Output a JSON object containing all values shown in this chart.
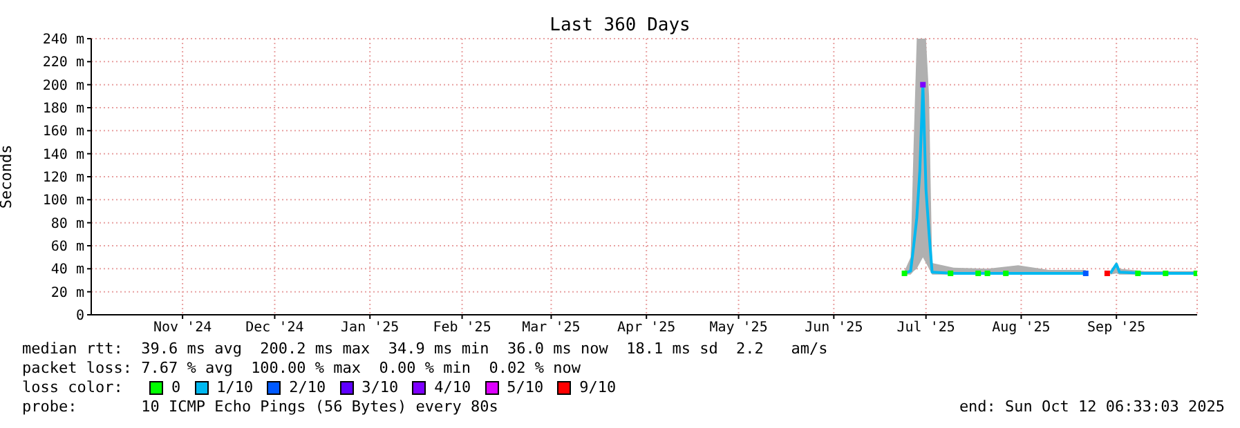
{
  "chart_data": {
    "type": "line",
    "title": "Last 360 Days",
    "ylabel": "Seconds",
    "xlim": [
      "2024-10-17T06:33",
      "2025-10-12T06:33"
    ],
    "xticks": [
      {
        "value": "2024-11-16",
        "label": "Nov '24"
      },
      {
        "value": "2024-12-16",
        "label": "Dec '24"
      },
      {
        "value": "2025-01-16",
        "label": "Jan '25"
      },
      {
        "value": "2025-02-15",
        "label": "Feb '25"
      },
      {
        "value": "2025-03-16",
        "label": "Mar '25"
      },
      {
        "value": "2025-04-16",
        "label": "Apr '25"
      },
      {
        "value": "2025-05-16",
        "label": "May '25"
      },
      {
        "value": "2025-06-16",
        "label": "Jun '25"
      },
      {
        "value": "2025-07-16",
        "label": "Jul '25"
      },
      {
        "value": "2025-08-16",
        "label": "Aug '25"
      },
      {
        "value": "2025-09-16",
        "label": "Sep '25"
      }
    ],
    "ylim": [
      0,
      240
    ],
    "yticks": [
      0,
      {
        "value": 20,
        "label": "20 m"
      },
      {
        "value": 40,
        "label": "40 m"
      },
      {
        "value": 60,
        "label": "60 m"
      },
      {
        "value": 80,
        "label": "80 m"
      },
      {
        "value": 100,
        "label": "100 m"
      },
      {
        "value": 120,
        "label": "120 m"
      },
      {
        "value": 140,
        "label": "140 m"
      },
      {
        "value": 160,
        "label": "160 m"
      },
      {
        "value": 180,
        "label": "180 m"
      },
      {
        "value": 200,
        "label": "200 m"
      },
      {
        "value": 220,
        "label": "220 m"
      },
      {
        "value": 240,
        "label": "240 m"
      }
    ],
    "grid": true,
    "legend": "bottom",
    "legend_title": "loss color:",
    "series": [
      {
        "type": "scatter",
        "marker": "square",
        "name": "0",
        "color": "#00ff00",
        "x": [
          "2025-07-09",
          "2025-07-24",
          "2025-08-02",
          "2025-08-05",
          "2025-08-11",
          "2025-09-23",
          "2025-10-02",
          "2025-10-12"
        ],
        "values": [
          36,
          36,
          36,
          36,
          36,
          36,
          36,
          36
        ]
      },
      {
        "name": "1/10",
        "color": "#00b8f0",
        "x": [
          "2025-07-09",
          "2025-07-11",
          "2025-07-12",
          "2025-07-13",
          "2025-07-14",
          "2025-07-15",
          "2025-07-16",
          "2025-07-17",
          "2025-07-18",
          "2025-07-25",
          "2025-08-05",
          "2025-08-15",
          "2025-08-25",
          "2025-09-06",
          "2025-09-10",
          "2025-09-14",
          "2025-09-16",
          "2025-09-17",
          "2025-09-25",
          "2025-10-05",
          "2025-10-12"
        ],
        "values": [
          36,
          38,
          60,
          84,
          125,
          200,
          109,
          71,
          37,
          36,
          36,
          36,
          36,
          36,
          null,
          36,
          44,
          37,
          36,
          36,
          36
        ],
        "lower": [
          35,
          35,
          38,
          40,
          45,
          50,
          45,
          40,
          35,
          35,
          35,
          35,
          35,
          35,
          null,
          35,
          36,
          35,
          35,
          35,
          35
        ],
        "upper": [
          38,
          50,
          150,
          240,
          240,
          240,
          240,
          190,
          45,
          41,
          40,
          43,
          39,
          39,
          null,
          38,
          46,
          40,
          38,
          38,
          38
        ]
      },
      {
        "type": "scatter",
        "marker": "square",
        "name": "2/10",
        "color": "#0059ff",
        "x": [
          "2025-09-06"
        ],
        "values": [
          36
        ]
      },
      {
        "type": "scatter",
        "name": "3/10",
        "color": "#5e00ff"
      },
      {
        "type": "scatter",
        "marker": "square",
        "name": "4/10",
        "color": "#7e00ff",
        "x": [
          "2025-07-15"
        ],
        "values": [
          200
        ]
      },
      {
        "type": "scatter",
        "name": "5/10",
        "color": "#dd00ff"
      },
      {
        "type": "scatter",
        "marker": "square",
        "name": "9/10",
        "color": "#ff0000",
        "x": [
          "2025-09-13"
        ],
        "values": [
          36
        ]
      }
    ],
    "annotations": [
      "median rtt:  39.6 ms avg  200.2 ms max  34.9 ms min  36.0 ms now  18.1 ms sd  2.2   am/s",
      "packet loss: 7.67 % avg  100.00 % max  0.00 % min  0.02 % now",
      "probe:       10 ICMP Echo Pings (56 Bytes) every 80s",
      "end: Sun Oct 12 06:33:03 2025"
    ]
  }
}
